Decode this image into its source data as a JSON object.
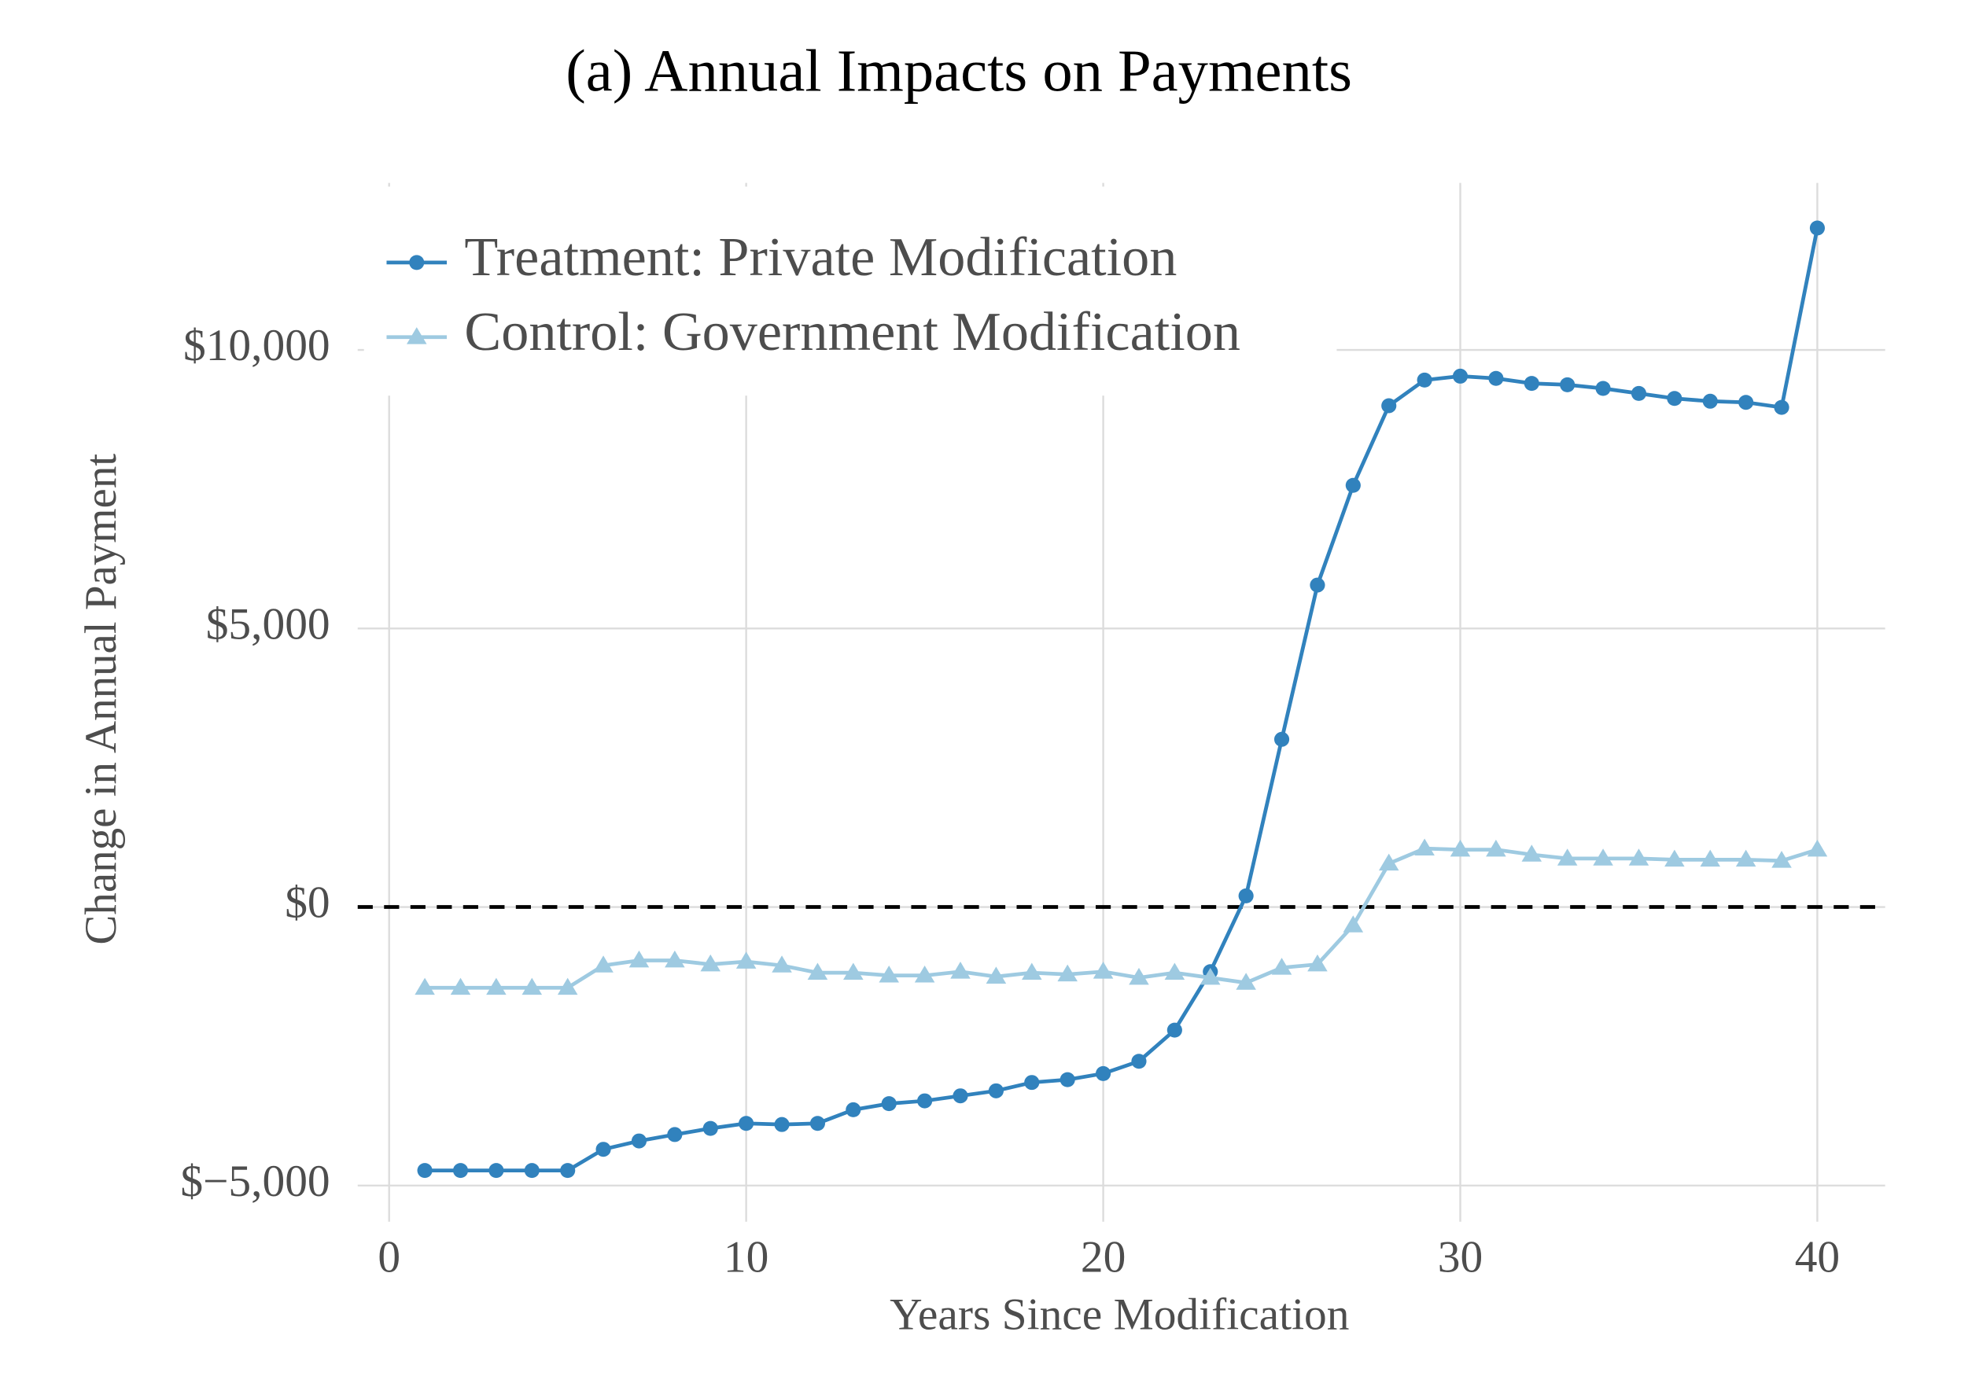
{
  "chart_data": {
    "type": "line",
    "title": "(a) Annual Impacts on Payments",
    "x_label": "Years Since Modification",
    "y_label": "Change in Annual Payment",
    "x": [
      1,
      2,
      3,
      4,
      5,
      6,
      7,
      8,
      9,
      10,
      11,
      12,
      13,
      14,
      15,
      16,
      17,
      18,
      19,
      20,
      21,
      22,
      23,
      24,
      25,
      26,
      27,
      28,
      29,
      30,
      31,
      32,
      33,
      34,
      35,
      36,
      37,
      38,
      39,
      40
    ],
    "series": [
      {
        "name": "Treatment: Private Modification",
        "color": "#3182bd",
        "marker": "circle",
        "values": [
          -4730,
          -4730,
          -4730,
          -4730,
          -4730,
          -4350,
          -4200,
          -4085,
          -3975,
          -3885,
          -3905,
          -3885,
          -3640,
          -3530,
          -3480,
          -3390,
          -3300,
          -3150,
          -3100,
          -2990,
          -2770,
          -2210,
          -1160,
          200,
          3010,
          5780,
          7570,
          9000,
          9460,
          9530,
          9490,
          9400,
          9375,
          9310,
          9220,
          9130,
          9080,
          9060,
          8970,
          12190
        ]
      },
      {
        "name": "Control: Government Modification",
        "color": "#9ecae1",
        "marker": "triangle",
        "values": [
          -1450,
          -1450,
          -1450,
          -1450,
          -1450,
          -1050,
          -960,
          -960,
          -1030,
          -980,
          -1050,
          -1180,
          -1180,
          -1230,
          -1230,
          -1160,
          -1250,
          -1180,
          -1210,
          -1160,
          -1270,
          -1180,
          -1270,
          -1360,
          -1090,
          -1030,
          -330,
          780,
          1050,
          1030,
          1030,
          940,
          870,
          870,
          870,
          850,
          850,
          850,
          830,
          1030
        ]
      }
    ],
    "reference_line": 0,
    "xlim": [
      -0.88,
      41.9
    ],
    "ylim": [
      -5650,
      13000
    ],
    "xticks": [
      0,
      10,
      20,
      30,
      40
    ],
    "yticks": [
      {
        "value": -5000,
        "label": "$−5,000"
      },
      {
        "value": 0,
        "label": "$0"
      },
      {
        "value": 5000,
        "label": "$5,000"
      },
      {
        "value": 10000,
        "label": "$10,000"
      }
    ],
    "grid": true,
    "legend": "upper left"
  }
}
